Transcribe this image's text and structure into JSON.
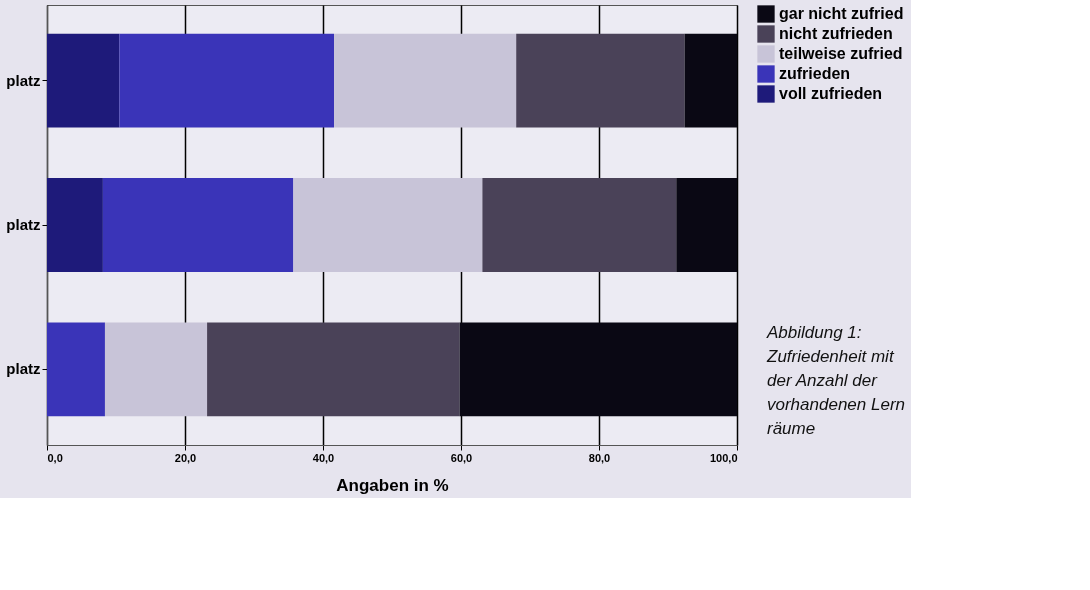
{
  "chart_data": {
    "type": "bar",
    "orientation": "horizontal",
    "stacked": true,
    "xlabel": "Angaben in %",
    "categories": [
      "platz",
      "platz",
      "platz"
    ],
    "series": [
      {
        "name": "voll zufrieden",
        "color": "#1e1a7a",
        "values": [
          10.5,
          8.1,
          0
        ]
      },
      {
        "name": "zufrieden",
        "color": "#3a34b8",
        "values": [
          31.1,
          27.6,
          8.4
        ]
      },
      {
        "name": "teilweise zufried",
        "color": "#c8c4d8",
        "values": [
          26.4,
          27.4,
          14.8
        ]
      },
      {
        "name": "nicht zufrieden",
        "color": "#4a4258",
        "values": [
          24.4,
          28.1,
          36.6
        ]
      },
      {
        "name": "gar nicht zufried",
        "color": "#0a0814",
        "values": [
          7.6,
          8.8,
          40.2
        ]
      }
    ],
    "xlim": [
      0,
      100
    ],
    "xticks": [
      {
        "value": 0,
        "label": "0,0"
      },
      {
        "value": 20,
        "label": "20,0"
      },
      {
        "value": 40,
        "label": "40,0"
      },
      {
        "value": 60,
        "label": "60,0"
      },
      {
        "value": 80,
        "label": "80,0"
      },
      {
        "value": 100,
        "label": "100,0"
      }
    ],
    "grid": "x",
    "legend": "right",
    "annotations": [
      "Abbildung 1:\nZufriedenheit mit\nder Anzahl der\nvorhandenen Lern\nräume"
    ]
  }
}
